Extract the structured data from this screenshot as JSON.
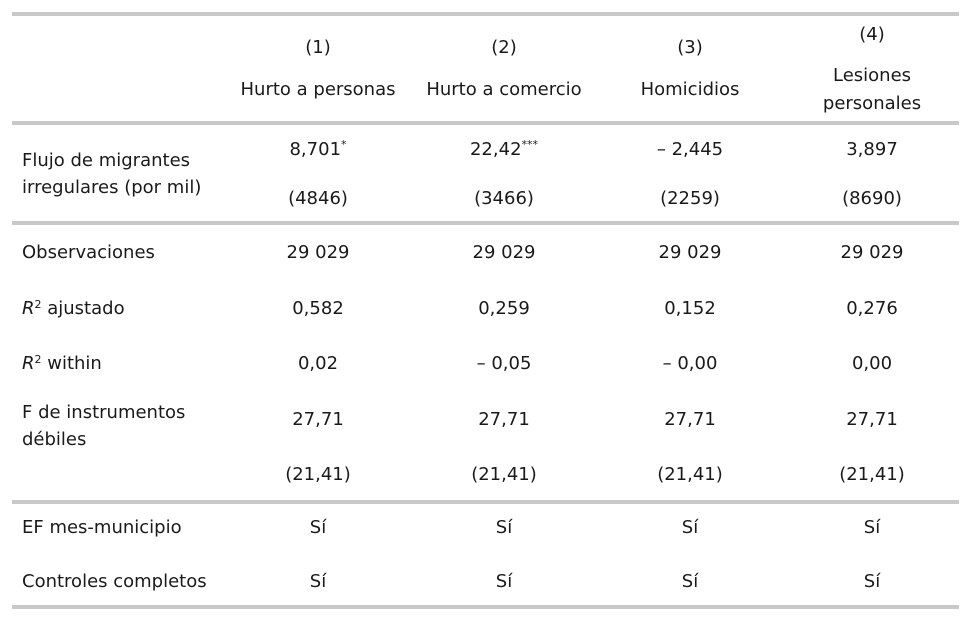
{
  "header": {
    "columns": [
      {
        "num": "(1)",
        "label": "Hurto a personas"
      },
      {
        "num": "(2)",
        "label": "Hurto a comercio"
      },
      {
        "num": "(3)",
        "label": "Homicidios"
      },
      {
        "num": "(4)",
        "label_line1": "Lesiones",
        "label_line2": "personales"
      }
    ]
  },
  "rows": {
    "flujo": {
      "label_line1": "Flujo de migrantes",
      "label_line2": "irregulares (por mil)",
      "coef": [
        "8,701",
        "22,42",
        "– 2,445",
        "3,897"
      ],
      "stars": [
        "*",
        "***",
        "",
        ""
      ],
      "se": [
        "(4846)",
        "(3466)",
        "(2259)",
        "(8690)"
      ]
    },
    "observaciones": {
      "label": "Observaciones",
      "values": [
        "29 029",
        "29 029",
        "29 029",
        "29 029"
      ]
    },
    "r2_ajustado": {
      "label_r": "R",
      "label_sup": "2",
      "label_rest": " ajustado",
      "values": [
        "0,582",
        "0,259",
        "0,152",
        "0,276"
      ]
    },
    "r2_within": {
      "label_r": "R",
      "label_sup": "2",
      "label_rest": " within",
      "values": [
        "0,02",
        "– 0,05",
        "– 0,00",
        "0,00"
      ]
    },
    "f_instrumentos": {
      "label_line1": "F de instrumentos",
      "label_line2": "débiles",
      "values": [
        "27,71",
        "27,71",
        "27,71",
        "27,71"
      ],
      "pvals": [
        "(21,41)",
        "(21,41)",
        "(21,41)",
        "(21,41)"
      ]
    },
    "ef": {
      "label": "EF mes-municipio",
      "values": [
        "Sí",
        "Sí",
        "Sí",
        "Sí"
      ]
    },
    "controles": {
      "label": "Controles completos",
      "values": [
        "Sí",
        "Sí",
        "Sí",
        "Sí"
      ]
    }
  }
}
